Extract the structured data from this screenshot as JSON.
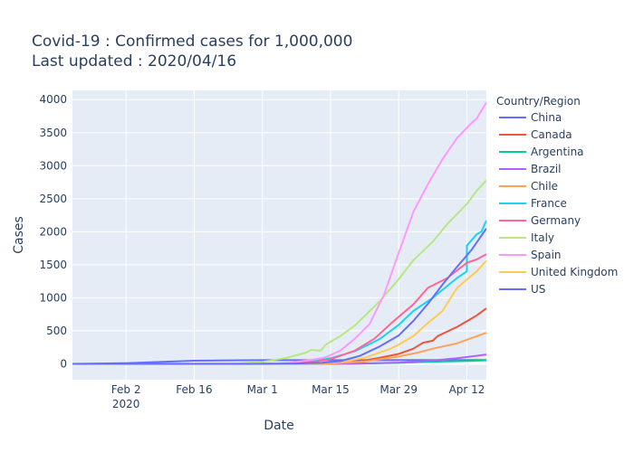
{
  "chart_data": {
    "type": "line",
    "title": "Covid-19 : Confirmed cases for 1,000,000",
    "subtitle": "Last updated : 2020/04/16",
    "xlabel": "Date",
    "ylabel": "Cases",
    "xlim": [
      "2020-01-22",
      "2020-04-16"
    ],
    "ylim": [
      -240,
      4140
    ],
    "grid": true,
    "plot_background": "#e5ecf6",
    "legend_title": "Country/Region",
    "legend_position": "right",
    "x_ticks": [
      {
        "date": "2020-02-02",
        "label": "Feb 2",
        "sublabel": "2020"
      },
      {
        "date": "2020-02-16",
        "label": "Feb 16",
        "sublabel": ""
      },
      {
        "date": "2020-03-01",
        "label": "Mar 1",
        "sublabel": ""
      },
      {
        "date": "2020-03-15",
        "label": "Mar 15",
        "sublabel": ""
      },
      {
        "date": "2020-03-29",
        "label": "Mar 29",
        "sublabel": ""
      },
      {
        "date": "2020-04-12",
        "label": "Apr 12",
        "sublabel": ""
      }
    ],
    "y_ticks": [
      0,
      500,
      1000,
      1500,
      2000,
      2500,
      3000,
      3500,
      4000
    ],
    "series": [
      {
        "name": "China",
        "color": "#636efa",
        "points": [
          [
            "2020-01-22",
            0
          ],
          [
            "2020-01-26",
            2
          ],
          [
            "2020-02-02",
            10
          ],
          [
            "2020-02-09",
            28
          ],
          [
            "2020-02-16",
            48
          ],
          [
            "2020-02-23",
            53
          ],
          [
            "2020-03-01",
            55
          ],
          [
            "2020-03-15",
            56
          ],
          [
            "2020-04-16",
            58
          ]
        ]
      },
      {
        "name": "Canada",
        "color": "#ef553b",
        "points": [
          [
            "2020-01-22",
            0
          ],
          [
            "2020-03-01",
            1
          ],
          [
            "2020-03-10",
            3
          ],
          [
            "2020-03-15",
            7
          ],
          [
            "2020-03-20",
            25
          ],
          [
            "2020-03-25",
            90
          ],
          [
            "2020-03-29",
            150
          ],
          [
            "2020-04-01",
            230
          ],
          [
            "2020-04-03",
            320
          ],
          [
            "2020-04-05",
            350
          ],
          [
            "2020-04-06",
            420
          ],
          [
            "2020-04-10",
            560
          ],
          [
            "2020-04-14",
            730
          ],
          [
            "2020-04-16",
            840
          ]
        ]
      },
      {
        "name": "Argentina",
        "color": "#00cc96",
        "points": [
          [
            "2020-01-22",
            0
          ],
          [
            "2020-03-10",
            0
          ],
          [
            "2020-03-20",
            3
          ],
          [
            "2020-03-29",
            15
          ],
          [
            "2020-04-05",
            32
          ],
          [
            "2020-04-12",
            45
          ],
          [
            "2020-04-16",
            54
          ]
        ]
      },
      {
        "name": "Brazil",
        "color": "#ab63fa",
        "points": [
          [
            "2020-01-22",
            0
          ],
          [
            "2020-03-05",
            0
          ],
          [
            "2020-03-15",
            1
          ],
          [
            "2020-03-22",
            6
          ],
          [
            "2020-03-29",
            19
          ],
          [
            "2020-04-05",
            50
          ],
          [
            "2020-04-10",
            85
          ],
          [
            "2020-04-16",
            140
          ]
        ]
      },
      {
        "name": "Chile",
        "color": "#ffa15a",
        "points": [
          [
            "2020-01-22",
            0
          ],
          [
            "2020-03-05",
            0
          ],
          [
            "2020-03-15",
            4
          ],
          [
            "2020-03-22",
            35
          ],
          [
            "2020-03-29",
            110
          ],
          [
            "2020-04-02",
            170
          ],
          [
            "2020-04-05",
            230
          ],
          [
            "2020-04-10",
            310
          ],
          [
            "2020-04-16",
            470
          ]
        ]
      },
      {
        "name": "France",
        "color": "#19d3f3",
        "points": [
          [
            "2020-01-22",
            0
          ],
          [
            "2020-02-26",
            0
          ],
          [
            "2020-03-01",
            2
          ],
          [
            "2020-03-06",
            9
          ],
          [
            "2020-03-10",
            28
          ],
          [
            "2020-03-15",
            85
          ],
          [
            "2020-03-20",
            190
          ],
          [
            "2020-03-25",
            370
          ],
          [
            "2020-03-29",
            590
          ],
          [
            "2020-04-01",
            800
          ],
          [
            "2020-04-05",
            1000
          ],
          [
            "2020-04-10",
            1300
          ],
          [
            "2020-04-12",
            1400
          ],
          [
            "2020-04-12",
            1790
          ],
          [
            "2020-04-14",
            1960
          ],
          [
            "2020-04-15",
            2000
          ],
          [
            "2020-04-16",
            2170
          ]
        ]
      },
      {
        "name": "Germany",
        "color": "#ff6692",
        "points": [
          [
            "2020-01-22",
            0
          ],
          [
            "2020-02-28",
            0
          ],
          [
            "2020-03-03",
            3
          ],
          [
            "2020-03-08",
            12
          ],
          [
            "2020-03-12",
            35
          ],
          [
            "2020-03-15",
            70
          ],
          [
            "2020-03-20",
            200
          ],
          [
            "2020-03-24",
            380
          ],
          [
            "2020-03-28",
            650
          ],
          [
            "2020-04-01",
            900
          ],
          [
            "2020-04-04",
            1150
          ],
          [
            "2020-04-08",
            1300
          ],
          [
            "2020-04-12",
            1530
          ],
          [
            "2020-04-14",
            1580
          ],
          [
            "2020-04-16",
            1660
          ]
        ]
      },
      {
        "name": "Italy",
        "color": "#b6e880",
        "points": [
          [
            "2020-01-22",
            0
          ],
          [
            "2020-02-20",
            0
          ],
          [
            "2020-02-25",
            5
          ],
          [
            "2020-03-01",
            30
          ],
          [
            "2020-03-06",
            90
          ],
          [
            "2020-03-10",
            170
          ],
          [
            "2020-03-11",
            210
          ],
          [
            "2020-03-13",
            200
          ],
          [
            "2020-03-14",
            290
          ],
          [
            "2020-03-17",
            420
          ],
          [
            "2020-03-20",
            580
          ],
          [
            "2020-03-25",
            940
          ],
          [
            "2020-03-29",
            1280
          ],
          [
            "2020-04-01",
            1570
          ],
          [
            "2020-04-05",
            1850
          ],
          [
            "2020-04-08",
            2120
          ],
          [
            "2020-04-12",
            2420
          ],
          [
            "2020-04-14",
            2620
          ],
          [
            "2020-04-16",
            2780
          ]
        ]
      },
      {
        "name": "Spain",
        "color": "#ff97ff",
        "points": [
          [
            "2020-01-22",
            0
          ],
          [
            "2020-03-01",
            0
          ],
          [
            "2020-03-06",
            10
          ],
          [
            "2020-03-11",
            60
          ],
          [
            "2020-03-14",
            100
          ],
          [
            "2020-03-17",
            200
          ],
          [
            "2020-03-20",
            380
          ],
          [
            "2020-03-23",
            600
          ],
          [
            "2020-03-26",
            1050
          ],
          [
            "2020-03-29",
            1680
          ],
          [
            "2020-04-01",
            2300
          ],
          [
            "2020-04-04",
            2720
          ],
          [
            "2020-04-07",
            3100
          ],
          [
            "2020-04-10",
            3420
          ],
          [
            "2020-04-13",
            3650
          ],
          [
            "2020-04-14",
            3710
          ],
          [
            "2020-04-16",
            3960
          ]
        ]
      },
      {
        "name": "United Kingdom",
        "color": "#fecb52",
        "points": [
          [
            "2020-01-22",
            0
          ],
          [
            "2020-03-05",
            1
          ],
          [
            "2020-03-12",
            8
          ],
          [
            "2020-03-17",
            30
          ],
          [
            "2020-03-22",
            90
          ],
          [
            "2020-03-27",
            220
          ],
          [
            "2020-03-29",
            290
          ],
          [
            "2020-04-01",
            420
          ],
          [
            "2020-04-04",
            620
          ],
          [
            "2020-04-07",
            800
          ],
          [
            "2020-04-10",
            1150
          ],
          [
            "2020-04-14",
            1400
          ],
          [
            "2020-04-16",
            1560
          ]
        ]
      },
      {
        "name": "US",
        "color": "#636efa",
        "points": [
          [
            "2020-01-22",
            0
          ],
          [
            "2020-03-01",
            0
          ],
          [
            "2020-03-08",
            5
          ],
          [
            "2020-03-13",
            15
          ],
          [
            "2020-03-17",
            40
          ],
          [
            "2020-03-21",
            120
          ],
          [
            "2020-03-25",
            260
          ],
          [
            "2020-03-29",
            430
          ],
          [
            "2020-04-01",
            650
          ],
          [
            "2020-04-04",
            910
          ],
          [
            "2020-04-07",
            1200
          ],
          [
            "2020-04-10",
            1470
          ],
          [
            "2020-04-13",
            1730
          ],
          [
            "2020-04-16",
            2050
          ]
        ]
      }
    ]
  }
}
